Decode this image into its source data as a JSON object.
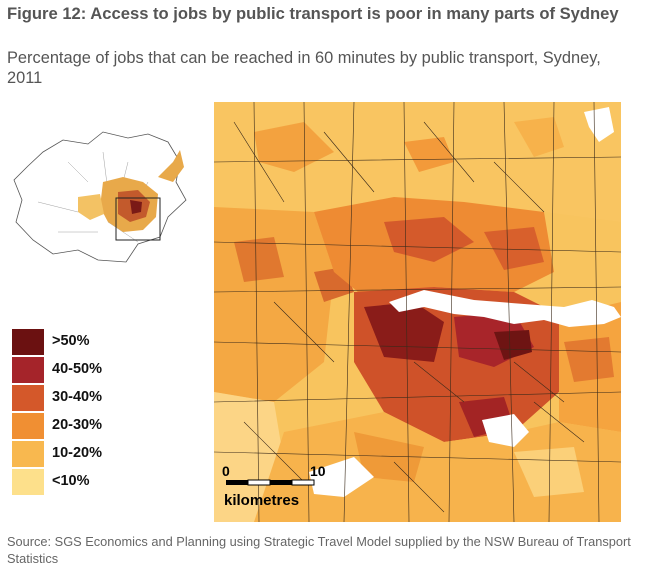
{
  "figure": {
    "title": "Figure 12: Access to jobs by public transport is poor in many parts of Sydney",
    "subtitle": "Percentage of jobs that can be reached in 60 minutes by public transport, Sydney, 2011",
    "source": "Source: SGS Economics and Planning using Strategic Travel Model supplied by the NSW Bureau of Transport Statistics"
  },
  "legend": {
    "items": [
      {
        "label": ">50%",
        "color": "#6b1111"
      },
      {
        "label": "40-50%",
        "color": "#a5242a"
      },
      {
        "label": "30-40%",
        "color": "#d4582a"
      },
      {
        "label": "20-30%",
        "color": "#f08f33"
      },
      {
        "label": "10-20%",
        "color": "#f8b84f"
      },
      {
        "label": "<10%",
        "color": "#fde08b"
      }
    ]
  },
  "map": {
    "water_color": "#ffffff",
    "boundary_color": "#3a2a1a",
    "scale_bar": {
      "start_label": "0",
      "end_label": "10",
      "unit_label": "kilometres"
    }
  },
  "inset": {
    "description_icon": "locator-map-icon"
  }
}
